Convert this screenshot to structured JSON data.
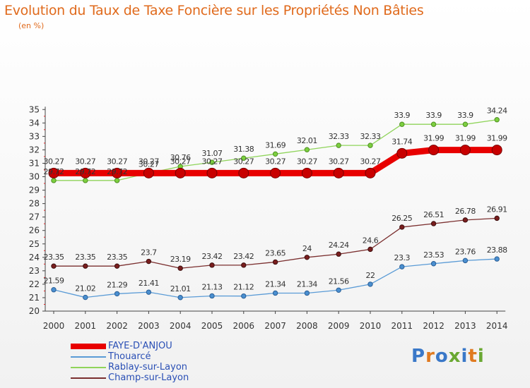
{
  "chart_data": {
    "type": "line",
    "title": "Evolution du Taux de Taxe Foncière sur les Propriétés Non Bâties",
    "subtitle": "(en %)",
    "ylim": [
      20,
      35
    ],
    "yticks": [
      "20",
      "21",
      "22",
      "23",
      "24",
      "25",
      "26",
      "27",
      "28",
      "29",
      "30",
      "31",
      "32",
      "33",
      "34",
      "35"
    ],
    "categories": [
      "2000",
      "2001",
      "2002",
      "2003",
      "2004",
      "2005",
      "2006",
      "2007",
      "2008",
      "2009",
      "2010",
      "2011",
      "2012",
      "2013",
      "2014"
    ],
    "grid": false,
    "legend_position": "bottom-left",
    "series": [
      {
        "name": "FAYE-D'ANJOU",
        "color": "#e80000",
        "values": [
          30.27,
          30.27,
          30.27,
          30.27,
          30.27,
          30.27,
          30.27,
          30.27,
          30.27,
          30.27,
          30.27,
          31.74,
          31.99,
          31.99,
          31.99
        ],
        "labels": [
          "30.27",
          "30.27",
          "30.27",
          "30.27",
          "30.27",
          "30.27",
          "30.27",
          "30.27",
          "30.27",
          "30.27",
          "30.27",
          "31.74",
          "31.99",
          "31.99",
          "31.99"
        ]
      },
      {
        "name": "Thouarcé",
        "color": "#5a9bd6",
        "values": [
          21.59,
          21.02,
          21.29,
          21.41,
          21.01,
          21.13,
          21.12,
          21.34,
          21.34,
          21.56,
          22,
          23.3,
          23.53,
          23.76,
          23.88
        ],
        "labels": [
          "21.59",
          "21.02",
          "21.29",
          "21.41",
          "21.01",
          "21.13",
          "21.12",
          "21.34",
          "21.34",
          "21.56",
          "22",
          "23.3",
          "23.53",
          "23.76",
          "23.88"
        ]
      },
      {
        "name": "Rablay-sur-Layon",
        "color": "#8fd45a",
        "values": [
          29.72,
          29.72,
          29.72,
          30.27,
          30.76,
          31.07,
          31.38,
          31.69,
          32.01,
          32.33,
          32.33,
          33.9,
          33.9,
          33.9,
          34.24
        ],
        "labels": [
          "29.72",
          "29.72",
          "29.72",
          "30.27",
          "30.76",
          "31.07",
          "31.38",
          "31.69",
          "32.01",
          "32.33",
          "32.33",
          "33.9",
          "33.9",
          "33.9",
          "34.24"
        ]
      },
      {
        "name": "Champ-sur-Layon",
        "color": "#7b2f2f",
        "values": [
          23.35,
          23.35,
          23.35,
          23.7,
          23.19,
          23.42,
          23.42,
          23.65,
          24,
          24.24,
          24.6,
          26.25,
          26.51,
          26.78,
          26.91
        ],
        "labels": [
          "23.35",
          "23.35",
          "23.35",
          "23.7",
          "23.19",
          "23.42",
          "23.42",
          "23.65",
          "24",
          "24.24",
          "24.6",
          "26.25",
          "26.51",
          "26.78",
          "26.91"
        ]
      }
    ]
  },
  "logo": {
    "text": "Proxiti"
  }
}
